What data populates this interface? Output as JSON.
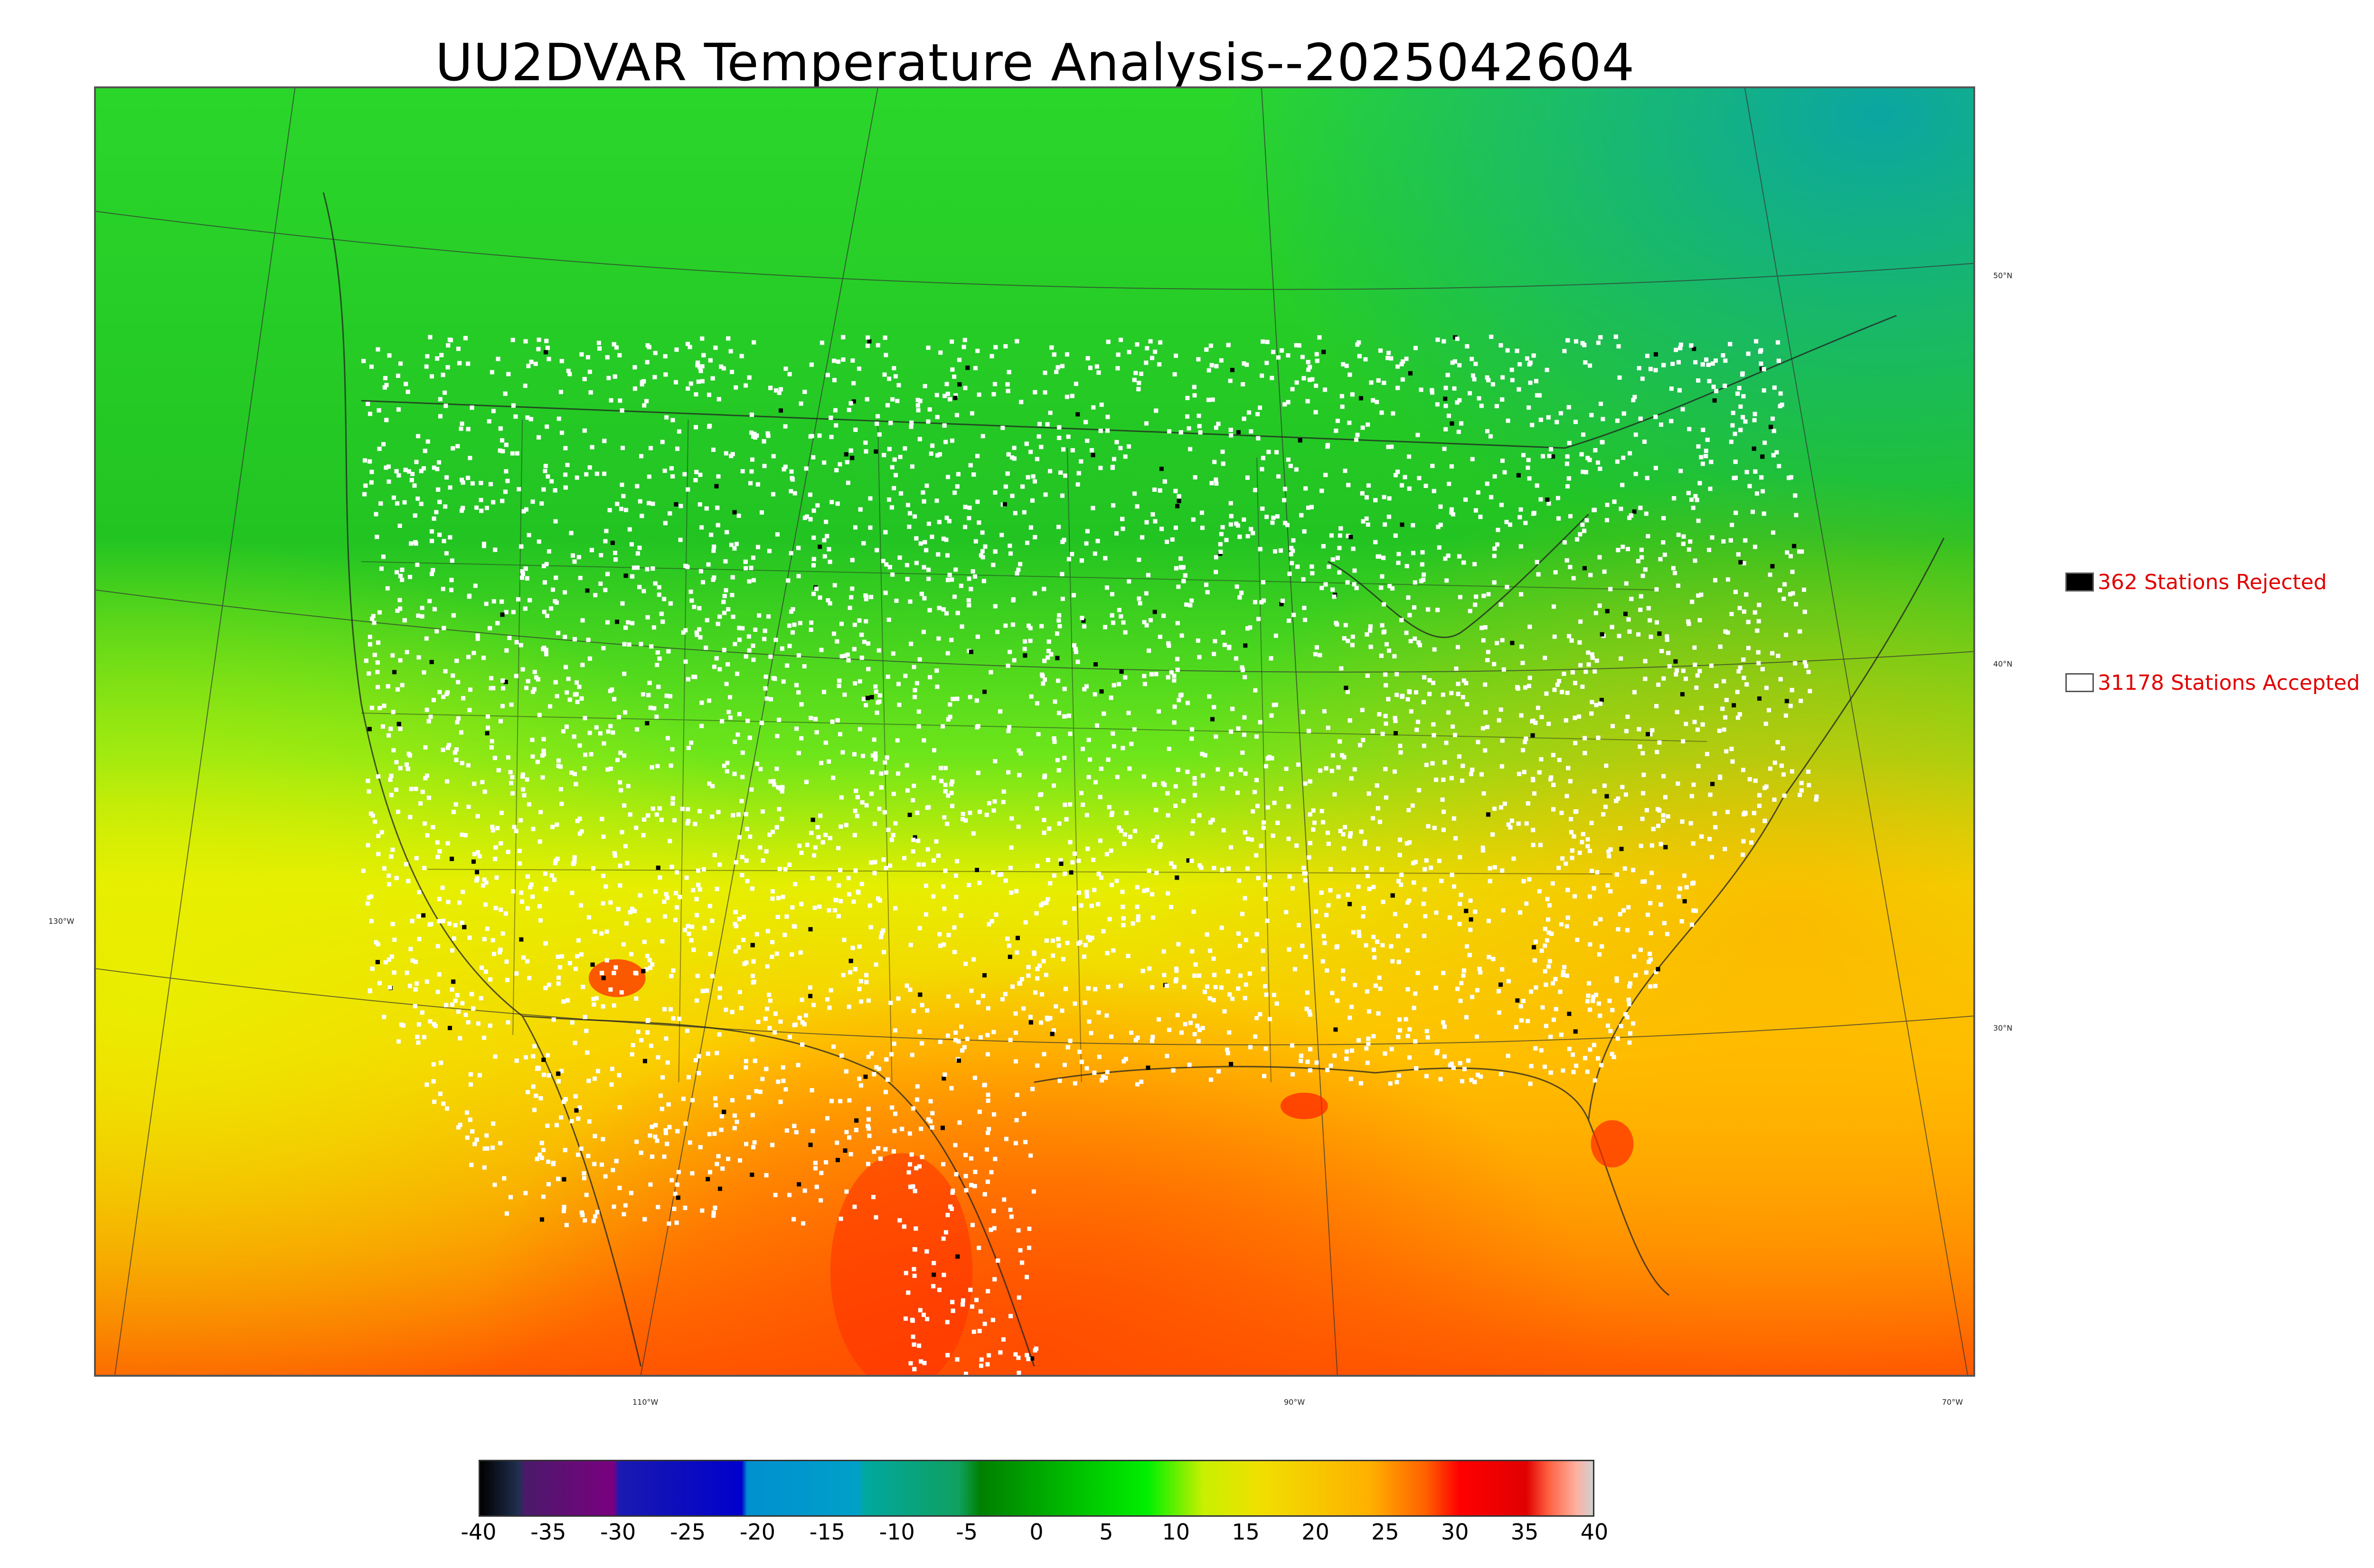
{
  "title": "UU2DVAR Temperature Analysis--2025042604",
  "legend": {
    "rejected": {
      "label": "362 Stations Rejected",
      "color": "#000000"
    },
    "accepted": {
      "label": "31178 Stations Accepted",
      "color": "#ffffff"
    }
  },
  "graticule": {
    "latitudes": [
      "50°N",
      "40°N",
      "30°N"
    ],
    "longitudes": [
      "130°W",
      "110°W",
      "90°W",
      "70°W"
    ]
  },
  "colorbar": {
    "ticks": [
      "-40",
      "-35",
      "-30",
      "-25",
      "-20",
      "-15",
      "-10",
      "-5",
      "0",
      "5",
      "10",
      "15",
      "20",
      "25",
      "30",
      "35",
      "40"
    ],
    "range": [
      -40,
      40
    ]
  },
  "colors": {
    "cold_green": "#1faa1f",
    "green": "#2ee62e",
    "yellow": "#e6f000",
    "orange": "#ffb400",
    "red_orange": "#ff5a00"
  }
}
